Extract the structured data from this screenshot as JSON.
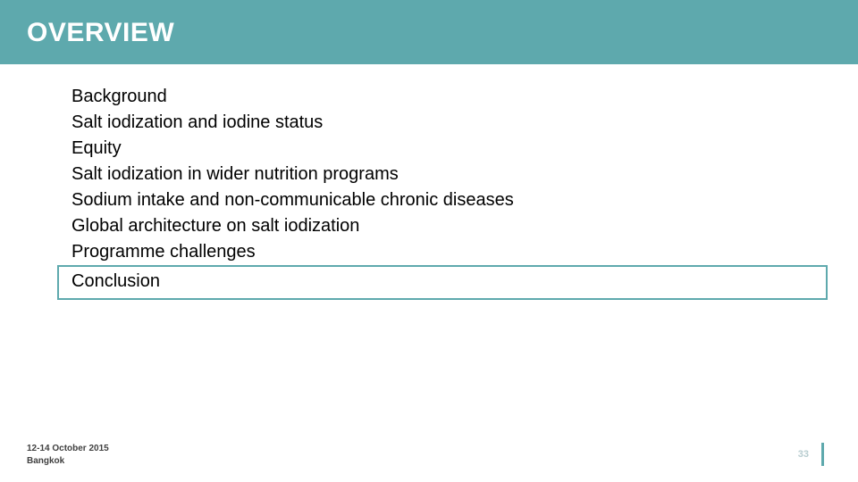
{
  "colors": {
    "accent": "#5ea9ad",
    "header_text": "#ffffff",
    "body_text": "#000000",
    "footer_text": "#404040",
    "page_num": "#b8cdd0",
    "background": "#ffffff"
  },
  "header": {
    "title": "OVERVIEW"
  },
  "content": {
    "items": [
      "Background",
      "Salt iodization and iodine status",
      "Equity",
      "Salt iodization in wider nutrition programs",
      "Sodium intake and non-communicable chronic diseases",
      "Global architecture on salt iodization",
      "Programme challenges",
      "Conclusion"
    ],
    "highlight_index": 7
  },
  "footer": {
    "date_line": "12-14 October 2015",
    "location_line": "Bangkok",
    "page_number": "33"
  },
  "typography": {
    "title_fontsize": 30,
    "item_fontsize": 20,
    "footer_fontsize": 10,
    "pagenum_fontsize": 11
  }
}
